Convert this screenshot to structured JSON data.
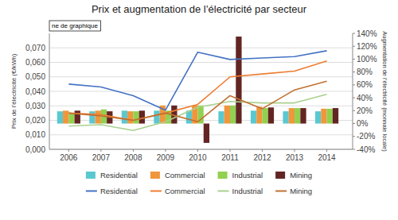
{
  "chart_data": {
    "type": "bar",
    "title": "Prix et augmentation de l’électricité par secteur",
    "y_label": "Prix de l’électricité (€/kWh)",
    "y2_label": "Augmentation de l’électricité (monnaie locale)",
    "annotations": [
      "ne de graphique"
    ],
    "x": [
      2006,
      2007,
      2008,
      2009,
      2010,
      2011,
      2012,
      2013,
      2014
    ],
    "xlim": [
      2005.4,
      2014.8
    ],
    "xticks": [
      2006,
      2007,
      2008,
      2009,
      2010,
      2011,
      2012,
      2013,
      2014
    ],
    "ylim": [
      0.0,
      0.08
    ],
    "yticks": [
      {
        "value": 0.0,
        "label": "0,000"
      },
      {
        "value": 0.01,
        "label": "0,010"
      },
      {
        "value": 0.02,
        "label": "0,020"
      },
      {
        "value": 0.03,
        "label": "0,030"
      },
      {
        "value": 0.04,
        "label": "0,040"
      },
      {
        "value": 0.05,
        "label": "0,050"
      },
      {
        "value": 0.06,
        "label": "0,060"
      },
      {
        "value": 0.07,
        "label": "0,070"
      }
    ],
    "y2lim": [
      -0.4,
      1.4
    ],
    "y2ticks": [
      {
        "value": -0.4,
        "label": "-40%"
      },
      {
        "value": -0.2,
        "label": "-20%"
      },
      {
        "value": 0.0,
        "label": "0%"
      },
      {
        "value": 0.2,
        "label": "20%"
      },
      {
        "value": 0.4,
        "label": "40%"
      },
      {
        "value": 0.6,
        "label": "60%"
      },
      {
        "value": 0.8,
        "label": "80%"
      },
      {
        "value": 1.0,
        "label": "100%"
      },
      {
        "value": 1.2,
        "label": "120%"
      },
      {
        "value": 1.4,
        "label": "140%"
      }
    ],
    "grid": true,
    "legend": "bottom",
    "series": [
      {
        "name": "Residential",
        "type": "bar",
        "axis": "y2",
        "color": "#5BC8D0",
        "values": [
          0.19,
          0.19,
          0.2,
          0.2,
          0.2,
          0.19,
          0.2,
          0.19,
          0.19
        ]
      },
      {
        "name": "Commercial",
        "type": "bar",
        "axis": "y2",
        "color": "#F0963C",
        "values": [
          0.2,
          0.2,
          0.19,
          0.28,
          0.28,
          0.28,
          0.26,
          0.24,
          0.23
        ]
      },
      {
        "name": "Industrial",
        "type": "bar",
        "axis": "y2",
        "color": "#92D050",
        "values": [
          0.16,
          0.22,
          0.19,
          0.2,
          0.28,
          0.28,
          0.24,
          0.24,
          0.23
        ]
      },
      {
        "name": "Mining",
        "type": "bar",
        "axis": "y2",
        "color": "#632523",
        "values": [
          0.2,
          0.19,
          0.2,
          0.28,
          -0.3,
          1.35,
          0.25,
          0.24,
          0.24
        ]
      },
      {
        "name": "Residential",
        "type": "line",
        "axis": "y",
        "color": "#4472C4",
        "values": [
          0.045,
          0.043,
          0.037,
          0.027,
          0.067,
          0.062,
          0.063,
          0.064,
          0.068
        ]
      },
      {
        "name": "Commercial",
        "type": "line",
        "axis": "y",
        "color": "#ED7D31",
        "values": [
          0.025,
          0.024,
          0.02,
          0.025,
          0.031,
          0.05,
          0.052,
          0.054,
          0.061
        ]
      },
      {
        "name": "Industrial",
        "type": "line",
        "axis": "y",
        "color": "#A9D18E",
        "values": [
          0.016,
          0.017,
          0.013,
          0.019,
          0.029,
          0.033,
          0.032,
          0.032,
          0.038
        ]
      },
      {
        "name": "Mining",
        "type": "line",
        "axis": "y",
        "color": "#C07030",
        "values": [
          0.025,
          0.023,
          0.02,
          0.025,
          0.019,
          0.037,
          0.028,
          0.041,
          0.047
        ]
      }
    ]
  }
}
